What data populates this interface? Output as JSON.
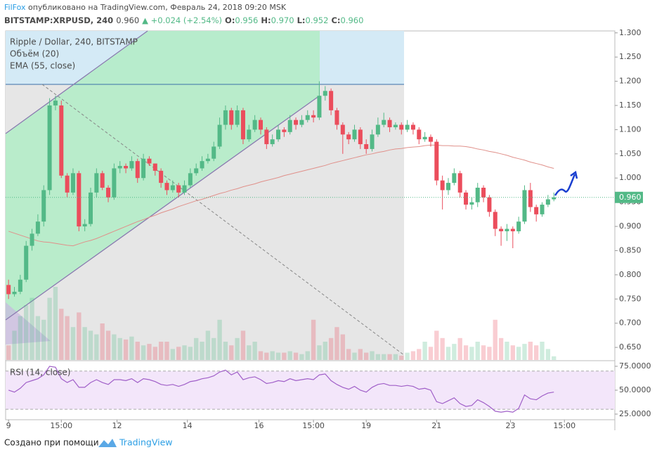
{
  "header": {
    "author": "FilFox",
    "published": "опубликовано на TradingView.com, Февраль 24, 2018 09:20 MSK",
    "symbol": "BITSTAMP:XRPUSD, 240",
    "last": "0.960",
    "change": "▲ +0.024 (+2.54%)",
    "quote": [
      [
        "O:",
        "0.956"
      ],
      [
        "H:",
        "0.970"
      ],
      [
        "L:",
        "0.952"
      ],
      [
        "C:",
        "0.960"
      ]
    ]
  },
  "footer": {
    "text": "Создано при помощи",
    "brand": "TradingView"
  },
  "chart_data": {
    "type": "candlestick",
    "title": "Ripple / Dollar, 240, BITSTAMP",
    "up_color": "#53b987",
    "down_color": "#eb4d5c",
    "xlim": [
      -0.5,
      103.4
    ],
    "ylim": [
      0.624,
      1.304
    ],
    "xticks": [
      {
        "value": 0,
        "label": "9"
      },
      {
        "value": 9,
        "label": "15:00"
      },
      {
        "value": 18.5,
        "label": "12"
      },
      {
        "value": 30.5,
        "label": "14"
      },
      {
        "value": 42.7,
        "label": "16"
      },
      {
        "value": 52,
        "label": "15:00"
      },
      {
        "value": 61,
        "label": "19"
      },
      {
        "value": 73,
        "label": "21"
      },
      {
        "value": 85.6,
        "label": "23"
      },
      {
        "value": 94.8,
        "label": "15:00"
      }
    ],
    "yticks": [
      {
        "value": 0.65,
        "label": "0.650"
      },
      {
        "value": 0.7,
        "label": "0.700"
      },
      {
        "value": 0.75,
        "label": "0.750"
      },
      {
        "value": 0.8,
        "label": "0.800"
      },
      {
        "value": 0.85,
        "label": "0.850"
      },
      {
        "value": 0.9,
        "label": "0.900"
      },
      {
        "value": 0.95,
        "label": "0.950"
      },
      {
        "value": 1.0,
        "label": "1.000"
      },
      {
        "value": 1.05,
        "label": "1.050"
      },
      {
        "value": 1.1,
        "label": "1.100"
      },
      {
        "value": 1.15,
        "label": "1.150"
      },
      {
        "value": 1.2,
        "label": "1.200"
      },
      {
        "value": 1.25,
        "label": "1.250"
      },
      {
        "value": 1.3,
        "label": "1.300"
      }
    ],
    "price_line": {
      "value": 0.96,
      "label": "0.960",
      "color": "#53b987"
    },
    "open": [
      0.779,
      0.76,
      0.765,
      0.79,
      0.86,
      0.885,
      0.91,
      0.975,
      1.15,
      1.15,
      1.005,
      0.97,
      1.01,
      0.9,
      0.905,
      0.97,
      1.01,
      0.98,
      0.96,
      1.02,
      1.025,
      1.02,
      1.035,
      1.0,
      1.04,
      1.03,
      1.015,
      0.99,
      0.975,
      0.985,
      0.97,
      0.985,
      1.01,
      1.02,
      1.035,
      1.04,
      1.065,
      1.11,
      1.14,
      1.11,
      1.14,
      1.08,
      1.1,
      1.12,
      1.1,
      1.07,
      1.08,
      1.1,
      1.095,
      1.12,
      1.11,
      1.12,
      1.13,
      1.125,
      1.17,
      1.18,
      1.14,
      1.11,
      1.09,
      1.08,
      1.1,
      1.07,
      1.06,
      1.09,
      1.11,
      1.12,
      1.105,
      1.11,
      1.1,
      1.11,
      1.1,
      1.08,
      1.085,
      1.075,
      0.995,
      0.975,
      0.99,
      1.01,
      0.97,
      0.945,
      0.95,
      0.98,
      0.96,
      0.93,
      0.895,
      0.89,
      0.895,
      0.89,
      0.91,
      0.975,
      0.94,
      0.925,
      0.945,
      0.956
    ],
    "high": [
      0.79,
      0.775,
      0.8,
      0.87,
      0.895,
      0.925,
      0.985,
      1.165,
      1.17,
      1.16,
      1.01,
      1.02,
      1.015,
      0.915,
      0.98,
      1.02,
      1.015,
      0.985,
      1.03,
      1.035,
      1.03,
      1.045,
      1.04,
      1.05,
      1.045,
      1.03,
      1.02,
      0.995,
      0.995,
      0.99,
      0.995,
      1.02,
      1.03,
      1.045,
      1.05,
      1.075,
      1.125,
      1.15,
      1.145,
      1.15,
      1.145,
      1.11,
      1.13,
      1.125,
      1.105,
      1.09,
      1.11,
      1.105,
      1.13,
      1.125,
      1.13,
      1.14,
      1.14,
      1.2,
      1.19,
      1.185,
      1.145,
      1.115,
      1.095,
      1.11,
      1.105,
      1.08,
      1.1,
      1.125,
      1.135,
      1.125,
      1.115,
      1.115,
      1.12,
      1.115,
      1.105,
      1.095,
      1.09,
      1.08,
      1.005,
      1.0,
      1.02,
      1.015,
      0.975,
      0.96,
      0.99,
      0.985,
      0.965,
      0.935,
      0.9,
      0.905,
      0.9,
      0.92,
      0.985,
      0.99,
      0.945,
      0.95,
      0.965,
      0.97
    ],
    "low": [
      0.75,
      0.755,
      0.76,
      0.785,
      0.85,
      0.88,
      0.9,
      0.965,
      1.14,
      1.0,
      0.96,
      0.965,
      0.89,
      0.89,
      0.9,
      0.96,
      0.975,
      0.95,
      0.955,
      1.01,
      1.01,
      1.015,
      0.99,
      0.995,
      1.025,
      1.005,
      0.98,
      0.965,
      0.97,
      0.96,
      0.965,
      0.98,
      1.005,
      1.015,
      1.03,
      1.035,
      1.06,
      1.1,
      1.1,
      1.105,
      1.07,
      1.075,
      1.095,
      1.09,
      1.06,
      1.065,
      1.075,
      1.085,
      1.09,
      1.1,
      1.105,
      1.115,
      1.115,
      1.12,
      1.16,
      1.13,
      1.1,
      1.05,
      1.07,
      1.075,
      1.06,
      1.05,
      1.055,
      1.085,
      1.105,
      1.095,
      1.1,
      1.09,
      1.095,
      1.09,
      1.07,
      1.075,
      1.065,
      0.985,
      0.935,
      0.965,
      0.985,
      0.96,
      0.935,
      0.935,
      0.94,
      0.95,
      0.92,
      0.88,
      0.86,
      0.87,
      0.855,
      0.885,
      0.905,
      0.93,
      0.91,
      0.92,
      0.94,
      0.952
    ],
    "close": [
      0.76,
      0.765,
      0.79,
      0.86,
      0.885,
      0.91,
      0.975,
      1.15,
      1.16,
      1.005,
      0.97,
      1.01,
      0.9,
      0.905,
      0.97,
      1.01,
      0.98,
      0.96,
      1.02,
      1.025,
      1.02,
      1.035,
      1.0,
      1.04,
      1.03,
      1.015,
      0.99,
      0.975,
      0.985,
      0.97,
      0.985,
      1.01,
      1.02,
      1.035,
      1.04,
      1.065,
      1.11,
      1.14,
      1.11,
      1.14,
      1.08,
      1.1,
      1.12,
      1.1,
      1.07,
      1.08,
      1.1,
      1.095,
      1.12,
      1.11,
      1.12,
      1.13,
      1.125,
      1.17,
      1.18,
      1.14,
      1.11,
      1.09,
      1.08,
      1.1,
      1.07,
      1.06,
      1.09,
      1.11,
      1.12,
      1.105,
      1.11,
      1.1,
      1.11,
      1.1,
      1.08,
      1.085,
      1.075,
      0.995,
      0.975,
      0.99,
      1.01,
      0.97,
      0.945,
      0.95,
      0.98,
      0.96,
      0.93,
      0.895,
      0.89,
      0.895,
      0.89,
      0.91,
      0.975,
      0.94,
      0.925,
      0.945,
      0.956,
      0.96
    ],
    "volume": {
      "name": "Объём (20)",
      "values": [
        20,
        40,
        60,
        75,
        85,
        60,
        55,
        85,
        100,
        70,
        60,
        45,
        65,
        45,
        40,
        35,
        50,
        40,
        35,
        30,
        28,
        32,
        25,
        20,
        22,
        18,
        25,
        25,
        15,
        18,
        20,
        18,
        30,
        25,
        40,
        30,
        55,
        25,
        20,
        30,
        40,
        20,
        25,
        12,
        10,
        12,
        10,
        10,
        12,
        10,
        8,
        12,
        55,
        20,
        25,
        30,
        45,
        35,
        15,
        10,
        15,
        10,
        12,
        8,
        8,
        8,
        8,
        6,
        10,
        12,
        15,
        25,
        18,
        40,
        30,
        18,
        22,
        30,
        20,
        18,
        25,
        20,
        18,
        55,
        30,
        25,
        20,
        18,
        22,
        25,
        20,
        25,
        15,
        5
      ]
    },
    "ema": {
      "name": "EMA (55, close)",
      "color": "#e0908a",
      "values": [
        0.89,
        0.886,
        0.882,
        0.878,
        0.874,
        0.87,
        0.868,
        0.867,
        0.865,
        0.863,
        0.861,
        0.86,
        0.864,
        0.868,
        0.871,
        0.875,
        0.88,
        0.885,
        0.89,
        0.895,
        0.9,
        0.905,
        0.91,
        0.914,
        0.919,
        0.923,
        0.928,
        0.932,
        0.936,
        0.941,
        0.945,
        0.949,
        0.953,
        0.956,
        0.96,
        0.964,
        0.968,
        0.971,
        0.975,
        0.978,
        0.982,
        0.985,
        0.988,
        0.992,
        0.995,
        0.998,
        1.001,
        1.005,
        1.008,
        1.011,
        1.014,
        1.017,
        1.02,
        1.023,
        1.026,
        1.03,
        1.033,
        1.036,
        1.039,
        1.042,
        1.045,
        1.048,
        1.05,
        1.053,
        1.055,
        1.058,
        1.06,
        1.061,
        1.063,
        1.064,
        1.065,
        1.067,
        1.068,
        1.068,
        1.067,
        1.067,
        1.066,
        1.066,
        1.065,
        1.063,
        1.06,
        1.058,
        1.055,
        1.053,
        1.05,
        1.047,
        1.043,
        1.04,
        1.037,
        1.033,
        1.03,
        1.027,
        1.023,
        1.02
      ]
    },
    "rsi": {
      "name": "RSI (14, close)",
      "color": "#a05fc8",
      "ylim": [
        19.1,
        79.4
      ],
      "band": [
        30,
        70
      ],
      "yticks": [
        {
          "value": 25,
          "label": "25.0000"
        },
        {
          "value": 50,
          "label": "50.0000"
        },
        {
          "value": 75,
          "label": "75.0000"
        }
      ],
      "values": [
        50,
        48,
        52,
        58,
        60,
        62,
        66,
        75,
        74,
        62,
        58,
        61,
        53,
        53,
        58,
        61,
        58,
        56,
        61,
        61,
        60,
        62,
        58,
        62,
        61,
        59,
        56,
        55,
        56,
        54,
        56,
        59,
        60,
        62,
        63,
        65,
        69,
        71,
        66,
        69,
        61,
        63,
        64,
        61,
        57,
        58,
        60,
        59,
        62,
        60,
        61,
        62,
        61,
        66,
        67,
        60,
        56,
        53,
        51,
        54,
        50,
        48,
        53,
        56,
        57,
        55,
        55,
        54,
        55,
        54,
        51,
        52,
        50,
        38,
        36,
        39,
        42,
        36,
        33,
        34,
        40,
        37,
        33,
        28,
        27,
        28,
        27,
        31,
        45,
        41,
        40,
        44,
        47,
        48
      ]
    }
  }
}
